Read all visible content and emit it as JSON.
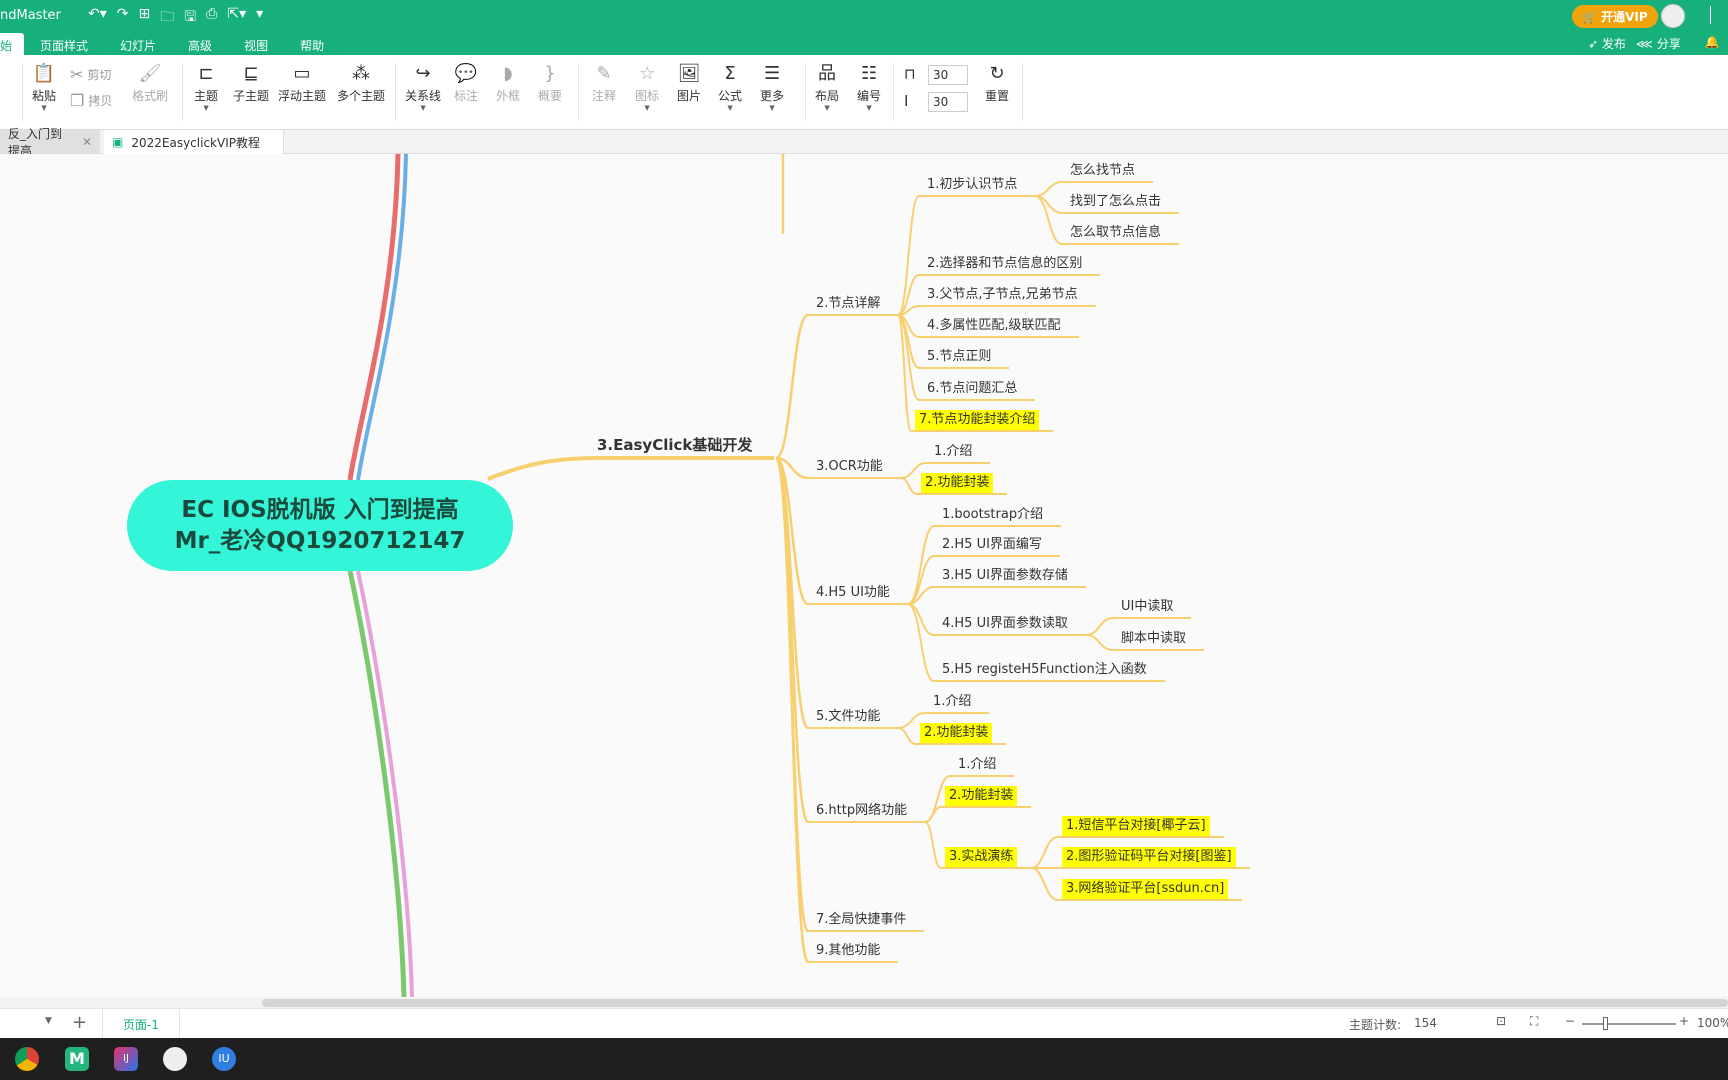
{
  "app": {
    "title": "ndMaster",
    "menus": [
      "始",
      "页面样式",
      "幻灯片",
      "高级",
      "视图",
      "帮助"
    ],
    "vip": "开通VIP",
    "publish": "发布",
    "share": "分享",
    "quick_icons": [
      "undo-icon",
      "redo-icon",
      "new-icon",
      "open-icon",
      "save-icon",
      "print-icon",
      "export-icon",
      "more-icon"
    ]
  },
  "toolbar": {
    "paste": "粘贴",
    "cut": "剪切",
    "copy": "拷贝",
    "format_painter": "格式刷",
    "topic": "主题",
    "subtopic": "子主题",
    "floating": "浮动主题",
    "multi": "多个主题",
    "relation": "关系线",
    "callout": "标注",
    "boundary": "外框",
    "summary": "概要",
    "note": "注释",
    "icon": "图标",
    "image": "图片",
    "formula": "公式",
    "more": "更多",
    "layout": "布局",
    "numbering": "编号",
    "h_spacing": "30",
    "v_spacing": "30",
    "reset": "重置"
  },
  "tabs": [
    {
      "label": "反_入门到提高"
    },
    {
      "label": "2022EasyclickVIP教程"
    }
  ],
  "map": {
    "central": [
      "EC IOS脱机版 入门到提高",
      "Mr_老冷QQ1920712147"
    ],
    "main": "3.EasyClick基础开发",
    "nodes": [
      "2.节点详解",
      "1.初步认识节点",
      "怎么找节点",
      "找到了怎么点击",
      "怎么取节点信息",
      "2.选择器和节点信息的区别",
      "3.父节点,子节点,兄弟节点",
      "4.多属性匹配,级联匹配",
      "5.节点正则",
      "6.节点问题汇总",
      "7.节点功能封装介绍",
      "3.OCR功能",
      "1.介绍",
      "2.功能封装",
      "4.H5 UI功能",
      "1.bootstrap介绍",
      "2.H5 UI界面编写",
      "3.H5 UI界面参数存储",
      "4.H5 UI界面参数读取",
      "UI中读取",
      "脚本中读取",
      "5.H5 registeH5Function注入函数",
      "5.文件功能",
      "1.介绍",
      "2.功能封装",
      "6.http网络功能",
      "1.介绍",
      "2.功能封装",
      "3.实战演练",
      "1.短信平台对接[椰子云]",
      "2.图形验证码平台对接[图鉴]",
      "3.网络验证平台[ssdun.cn]",
      "7.全局快捷事件",
      "9.其他功能"
    ],
    "highlighted": [
      "7.节点功能封装介绍",
      "2.功能封装",
      "3.实战演练",
      "1.短信平台对接[椰子云]",
      "2.图形验证码平台对接[图鉴]",
      "3.网络验证平台[ssdun.cn]"
    ],
    "colors": {
      "central": "#35f5d9",
      "branch": "#f7cf6e",
      "highlight": "#ffff00",
      "red": "#e96c6c",
      "blue": "#6aaee8",
      "green": "#7cc86e",
      "pink": "#e8a0d8"
    }
  },
  "status": {
    "page": "页面-1",
    "count_label": "主题计数:",
    "count": "154",
    "zoom": "100%",
    "add": "+"
  },
  "taskbar": [
    "chrome-icon",
    "mindmaster-icon",
    "intellij-icon",
    "app-icon",
    "app2-icon"
  ]
}
